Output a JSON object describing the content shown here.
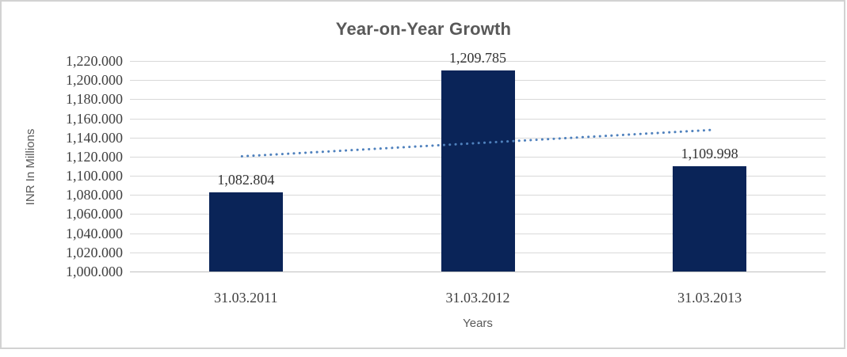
{
  "chart_data": {
    "type": "bar",
    "title": "Year-on-Year Growth",
    "xlabel": "Years",
    "ylabel": "INR In Millions",
    "categories": [
      "31.03.2011",
      "31.03.2012",
      "31.03.2013"
    ],
    "values": [
      1082.804,
      1209.785,
      1109.998
    ],
    "data_labels": [
      "1,082.804",
      "1,209.785",
      "1,109.998"
    ],
    "ylim": [
      1000,
      1220
    ],
    "ytick_step": 20,
    "ytick_labels": [
      "1,000.000",
      "1,020.000",
      "1,040.000",
      "1,060.000",
      "1,080.000",
      "1,100.000",
      "1,120.000",
      "1,140.000",
      "1,160.000",
      "1,180.000",
      "1,200.000",
      "1,220.000"
    ],
    "grid": true,
    "legend": "none",
    "bar_color": "#0a2458",
    "trendline": {
      "type": "linear",
      "style": "dotted",
      "color": "#4f81bd",
      "start_value": 1120.6,
      "end_value": 1147.8
    },
    "colors": {
      "gridline": "#d9d9d9",
      "axis_line": "#bfbfbf",
      "title_text": "#595959",
      "axis_title_text": "#595959",
      "tick_text": "#404040",
      "data_label_text": "#333333",
      "border": "#d2d2d2",
      "background": "#ffffff"
    }
  }
}
